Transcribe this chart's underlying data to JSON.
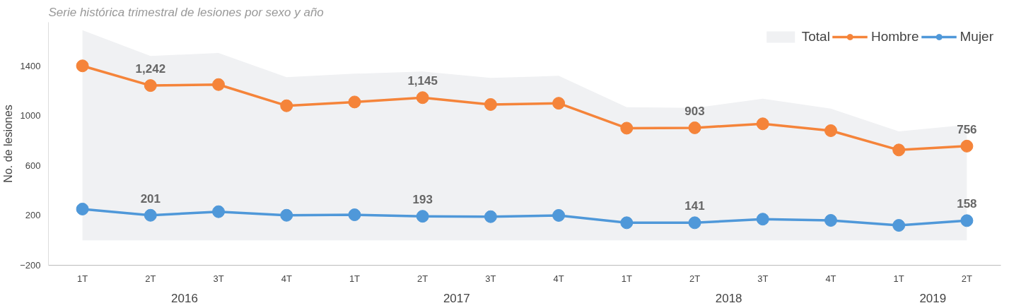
{
  "chart_data": {
    "type": "line",
    "title": "Serie histórica trimestral de lesiones por sexo y año",
    "ylabel": "No. de lesiones",
    "categories": [
      "1T",
      "2T",
      "3T",
      "4T",
      "1T",
      "2T",
      "3T",
      "4T",
      "1T",
      "2T",
      "3T",
      "4T",
      "1T",
      "2T"
    ],
    "annotations": [
      "2016",
      "2017",
      "2018",
      "2019"
    ],
    "series": [
      {
        "name": "Total",
        "type": "area",
        "color": "#f0f1f3",
        "values": [
          1686,
          1480,
          1503,
          1309,
          1337,
          1354,
          1303,
          1320,
          1069,
          1063,
          1137,
          1057,
          874,
          926
        ]
      },
      {
        "name": "Hombre",
        "color": "#f5843a",
        "marker": "circle",
        "values": [
          1400,
          1242,
          1250,
          1080,
          1110,
          1145,
          1090,
          1100,
          900,
          903,
          935,
          880,
          725,
          756
        ],
        "value_labels": [
          null,
          "1,242",
          null,
          null,
          null,
          "1,145",
          null,
          null,
          null,
          "903",
          null,
          null,
          null,
          "756"
        ]
      },
      {
        "name": "Mujer",
        "color": "#4f98d9",
        "marker": "circle",
        "values": [
          251,
          201,
          230,
          201,
          205,
          193,
          190,
          200,
          141,
          141,
          170,
          160,
          120,
          158
        ],
        "value_labels": [
          null,
          "201",
          null,
          null,
          null,
          "193",
          null,
          null,
          null,
          "141",
          null,
          null,
          null,
          "158"
        ]
      }
    ],
    "ylim": [
      -200,
      1750
    ],
    "yticks": [
      -200,
      200,
      600,
      1000,
      1400
    ],
    "grid": false,
    "legend": "top right",
    "line_style": "solid"
  }
}
